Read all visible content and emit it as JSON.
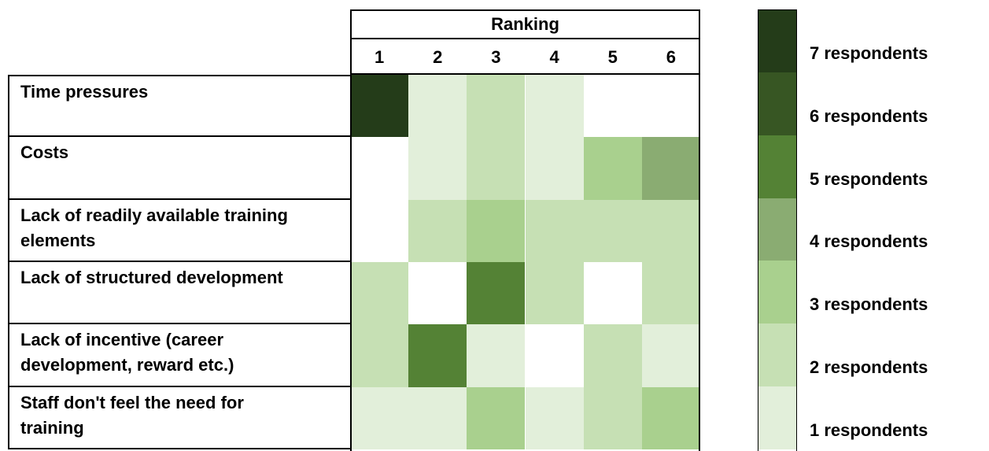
{
  "chart_data": {
    "type": "heatmap",
    "title": "Ranking",
    "x_categories": [
      "1",
      "2",
      "3",
      "4",
      "5",
      "6"
    ],
    "y_categories": [
      "Time pressures",
      "Costs",
      "Lack of readily available training elements",
      "Lack of structured development",
      "Lack of incentive (career development, reward etc.)",
      "Staff don't feel the need for training"
    ],
    "values": [
      [
        7,
        1,
        2,
        1,
        0,
        0
      ],
      [
        0,
        1,
        2,
        1,
        3,
        4
      ],
      [
        0,
        2,
        3,
        2,
        2,
        2
      ],
      [
        2,
        0,
        5,
        2,
        0,
        2
      ],
      [
        2,
        5,
        1,
        0,
        2,
        1
      ],
      [
        1,
        1,
        3,
        1,
        2,
        3
      ]
    ],
    "color_scale": [
      "#ffffff",
      "#e2efda",
      "#c6e0b4",
      "#a9d08e",
      "#8aac72",
      "#548235",
      "#375623",
      "#243c19"
    ],
    "legend": {
      "values": [
        7,
        6,
        5,
        4,
        3,
        2,
        1
      ],
      "value_labels": [
        "7 respondents",
        "6 respondents",
        "5 respondents",
        "4 respondents",
        "3 respondents",
        "2 respondents",
        "1 respondents"
      ]
    }
  }
}
